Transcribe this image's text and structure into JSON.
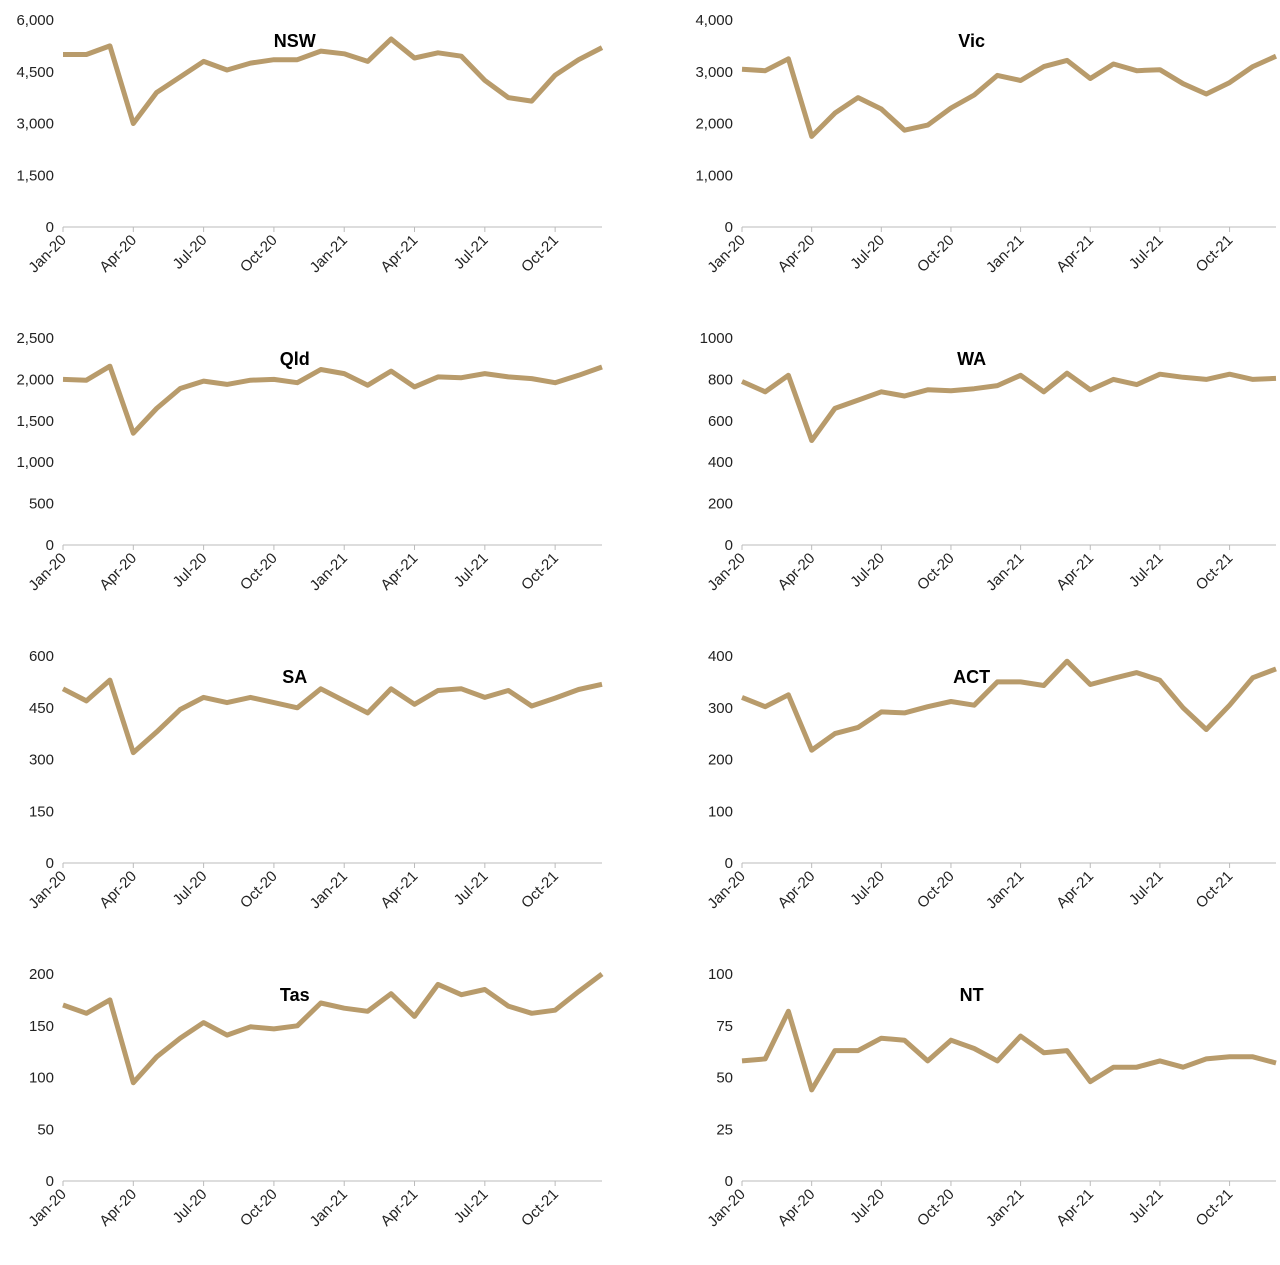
{
  "chart_data": [
    {
      "type": "line",
      "title": "NSW",
      "categories": [
        "Jan-20",
        null,
        null,
        "Apr-20",
        null,
        null,
        "Jul-20",
        null,
        null,
        "Oct-20",
        null,
        null,
        "Jan-21",
        null,
        null,
        "Apr-21",
        null,
        null,
        "Jul-21",
        null,
        null,
        "Oct-21",
        null,
        null
      ],
      "values": [
        5000,
        5000,
        5250,
        3000,
        3900,
        4350,
        4800,
        4550,
        4750,
        4850,
        4850,
        5100,
        5020,
        4800,
        5450,
        4900,
        5050,
        4950,
        4250,
        3750,
        3650,
        4400,
        4850,
        5200
      ],
      "color": "#b89b6b",
      "ylim": [
        0,
        6000
      ],
      "yticks": [
        0,
        {
          "value": 1500,
          "label": "1,500"
        },
        {
          "value": 3000,
          "label": "3,000"
        },
        {
          "value": 4500,
          "label": "4,500"
        },
        {
          "value": 6000,
          "label": "6,000"
        }
      ]
    },
    {
      "type": "line",
      "title": "Vic",
      "categories": [
        "Jan-20",
        null,
        null,
        "Apr-20",
        null,
        null,
        "Jul-20",
        null,
        null,
        "Oct-20",
        null,
        null,
        "Jan-21",
        null,
        null,
        "Apr-21",
        null,
        null,
        "Jul-21",
        null,
        null,
        "Oct-21",
        null,
        null
      ],
      "values": [
        3050,
        3020,
        3250,
        1750,
        2200,
        2500,
        2280,
        1870,
        1970,
        2300,
        2550,
        2930,
        2830,
        3100,
        3220,
        2870,
        3150,
        3020,
        3040,
        2770,
        2570,
        2790,
        3100,
        3300
      ],
      "color": "#b89b6b",
      "ylim": [
        0,
        4000
      ],
      "yticks": [
        0,
        {
          "value": 1000,
          "label": "1,000"
        },
        {
          "value": 2000,
          "label": "2,000"
        },
        {
          "value": 3000,
          "label": "3,000"
        },
        {
          "value": 4000,
          "label": "4,000"
        }
      ]
    },
    {
      "type": "line",
      "title": "Qld",
      "categories": [
        "Jan-20",
        null,
        null,
        "Apr-20",
        null,
        null,
        "Jul-20",
        null,
        null,
        "Oct-20",
        null,
        null,
        "Jan-21",
        null,
        null,
        "Apr-21",
        null,
        null,
        "Jul-21",
        null,
        null,
        "Oct-21",
        null,
        null
      ],
      "values": [
        2000,
        1990,
        2160,
        1350,
        1650,
        1890,
        1980,
        1940,
        1990,
        2000,
        1960,
        2120,
        2070,
        1930,
        2100,
        1910,
        2030,
        2020,
        2070,
        2030,
        2010,
        1960,
        2050,
        2150
      ],
      "color": "#b89b6b",
      "ylim": [
        0,
        2500
      ],
      "yticks": [
        0,
        500,
        {
          "value": 1000,
          "label": "1,000"
        },
        {
          "value": 1500,
          "label": "1,500"
        },
        {
          "value": 2000,
          "label": "2,000"
        },
        {
          "value": 2500,
          "label": "2,500"
        }
      ]
    },
    {
      "type": "line",
      "title": "WA",
      "categories": [
        "Jan-20",
        null,
        null,
        "Apr-20",
        null,
        null,
        "Jul-20",
        null,
        null,
        "Oct-20",
        null,
        null,
        "Jan-21",
        null,
        null,
        "Apr-21",
        null,
        null,
        "Jul-21",
        null,
        null,
        "Oct-21",
        null,
        null
      ],
      "values": [
        790,
        740,
        820,
        505,
        660,
        700,
        740,
        720,
        750,
        745,
        755,
        770,
        820,
        740,
        830,
        750,
        800,
        775,
        825,
        810,
        800,
        825,
        800,
        805
      ],
      "color": "#b89b6b",
      "ylim": [
        0,
        1000
      ],
      "yticks": [
        0,
        200,
        400,
        600,
        800,
        1000
      ]
    },
    {
      "type": "line",
      "title": "SA",
      "categories": [
        "Jan-20",
        null,
        null,
        "Apr-20",
        null,
        null,
        "Jul-20",
        null,
        null,
        "Oct-20",
        null,
        null,
        "Jan-21",
        null,
        null,
        "Apr-21",
        null,
        null,
        "Jul-21",
        null,
        null,
        "Oct-21",
        null,
        null
      ],
      "values": [
        505,
        470,
        530,
        320,
        380,
        445,
        480,
        465,
        480,
        465,
        450,
        505,
        470,
        435,
        505,
        460,
        500,
        505,
        480,
        500,
        455,
        478,
        503,
        518
      ],
      "color": "#b89b6b",
      "ylim": [
        0,
        600
      ],
      "yticks": [
        0,
        150,
        300,
        450,
        600
      ]
    },
    {
      "type": "line",
      "title": "ACT",
      "categories": [
        "Jan-20",
        null,
        null,
        "Apr-20",
        null,
        null,
        "Jul-20",
        null,
        null,
        "Oct-20",
        null,
        null,
        "Jan-21",
        null,
        null,
        "Apr-21",
        null,
        null,
        "Jul-21",
        null,
        null,
        "Oct-21",
        null,
        null
      ],
      "values": [
        320,
        302,
        325,
        218,
        250,
        262,
        292,
        290,
        302,
        312,
        305,
        350,
        350,
        343,
        390,
        345,
        357,
        368,
        353,
        300,
        258,
        305,
        358,
        375
      ],
      "color": "#b89b6b",
      "ylim": [
        0,
        400
      ],
      "yticks": [
        0,
        100,
        200,
        300,
        400
      ]
    },
    {
      "type": "line",
      "title": "Tas",
      "categories": [
        "Jan-20",
        null,
        null,
        "Apr-20",
        null,
        null,
        "Jul-20",
        null,
        null,
        "Oct-20",
        null,
        null,
        "Jan-21",
        null,
        null,
        "Apr-21",
        null,
        null,
        "Jul-21",
        null,
        null,
        "Oct-21",
        null,
        null
      ],
      "values": [
        170,
        162,
        175,
        95,
        120,
        138,
        153,
        141,
        149,
        147,
        150,
        172,
        167,
        164,
        181,
        159,
        190,
        180,
        185,
        169,
        162,
        165,
        183,
        200
      ],
      "color": "#b89b6b",
      "ylim": [
        0,
        200
      ],
      "yticks": [
        0,
        50,
        100,
        150,
        200
      ]
    },
    {
      "type": "line",
      "title": "NT",
      "categories": [
        "Jan-20",
        null,
        null,
        "Apr-20",
        null,
        null,
        "Jul-20",
        null,
        null,
        "Oct-20",
        null,
        null,
        "Jan-21",
        null,
        null,
        "Apr-21",
        null,
        null,
        "Jul-21",
        null,
        null,
        "Oct-21",
        null,
        null
      ],
      "values": [
        58,
        59,
        82,
        44,
        63,
        63,
        69,
        68,
        58,
        68,
        64,
        58,
        70,
        62,
        63,
        48,
        55,
        55,
        58,
        55,
        59,
        60,
        60,
        57
      ],
      "color": "#b89b6b",
      "ylim": [
        0,
        100
      ],
      "yticks": [
        0,
        25,
        50,
        75,
        100
      ]
    }
  ]
}
